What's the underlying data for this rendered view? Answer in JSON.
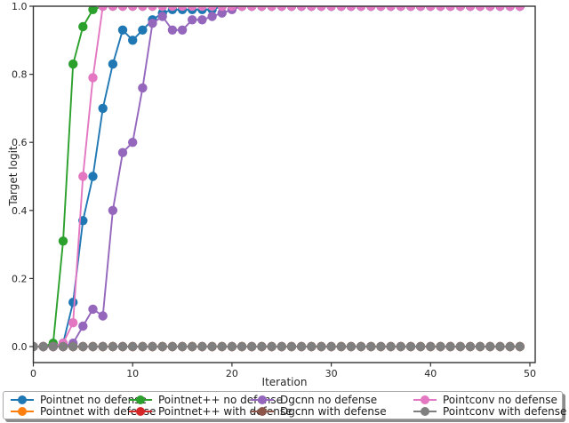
{
  "figure": {
    "background": "#ffffff",
    "text_color": "#262626",
    "spine_color": "#333333"
  },
  "chart_data": {
    "type": "line",
    "title": "",
    "xlabel": "Iteration",
    "ylabel": "Target  logit",
    "xlim": [
      0,
      50.5
    ],
    "ylim": [
      -0.05,
      1.0
    ],
    "xticks": [
      0,
      10,
      20,
      30,
      40,
      50
    ],
    "xtick_labels": [
      "0",
      "10",
      "20",
      "30",
      "40",
      "50"
    ],
    "yticks": [
      0.0,
      0.2,
      0.4,
      0.6,
      0.8,
      1.0
    ],
    "ytick_labels": [
      "0.0",
      "0.2",
      "0.4",
      "0.6",
      "0.8",
      "1.0"
    ],
    "grid": false,
    "legend_position": "bottom",
    "legend_columns": 4,
    "marker": "circle",
    "x": [
      0,
      1,
      2,
      3,
      4,
      5,
      6,
      7,
      8,
      9,
      10,
      11,
      12,
      13,
      14,
      15,
      16,
      17,
      18,
      19,
      20,
      21,
      22,
      23,
      24,
      25,
      26,
      27,
      28,
      29,
      30,
      31,
      32,
      33,
      34,
      35,
      36,
      37,
      38,
      39,
      40,
      41,
      42,
      43,
      44,
      45,
      46,
      47,
      48,
      49
    ],
    "series": [
      {
        "name": "Pointnet no defense",
        "color": "#1f77b4",
        "values": [
          0,
          0,
          0,
          0.01,
          0.13,
          0.37,
          0.5,
          0.7,
          0.83,
          0.93,
          0.9,
          0.93,
          0.96,
          0.98,
          0.99,
          0.99,
          0.99,
          0.99,
          0.99,
          1,
          1,
          1,
          1,
          1,
          1,
          1,
          1,
          1,
          1,
          1,
          1,
          1,
          1,
          1,
          1,
          1,
          1,
          1,
          1,
          1,
          1,
          1,
          1,
          1,
          1,
          1,
          1,
          1,
          1,
          1
        ]
      },
      {
        "name": "Pointnet with defense",
        "color": "#ff7f0e",
        "values": [
          0,
          0,
          0,
          0,
          0,
          0,
          0,
          0,
          0,
          0,
          0,
          0,
          0,
          0,
          0,
          0,
          0,
          0,
          0,
          0,
          0,
          0,
          0,
          0,
          0,
          0,
          0,
          0,
          0,
          0,
          0,
          0,
          0,
          0,
          0,
          0,
          0,
          0,
          0,
          0,
          0,
          0,
          0,
          0,
          0,
          0,
          0,
          0,
          0,
          0
        ]
      },
      {
        "name": "Pointnet++ no defense",
        "color": "#2ca02c",
        "values": [
          0,
          0,
          0.01,
          0.31,
          0.83,
          0.94,
          0.99,
          1,
          1,
          1,
          1,
          1,
          1,
          1,
          1,
          1,
          1,
          1,
          1,
          1,
          1,
          1,
          1,
          1,
          1,
          1,
          1,
          1,
          1,
          1,
          1,
          1,
          1,
          1,
          1,
          1,
          1,
          1,
          1,
          1,
          1,
          1,
          1,
          1,
          1,
          1,
          1,
          1,
          1,
          1
        ]
      },
      {
        "name": "Pointnet++ with defense",
        "color": "#d62728",
        "values": [
          0,
          0,
          0,
          0,
          0,
          0,
          0,
          0,
          0,
          0,
          0,
          0,
          0,
          0,
          0,
          0,
          0,
          0,
          0,
          0,
          0,
          0,
          0,
          0,
          0,
          0,
          0,
          0,
          0,
          0,
          0,
          0,
          0,
          0,
          0,
          0,
          0,
          0,
          0,
          0,
          0,
          0,
          0,
          0,
          0,
          0,
          0,
          0,
          0,
          0
        ]
      },
      {
        "name": "Dgcnn no defense",
        "color": "#9467bd",
        "values": [
          0,
          0,
          0,
          0,
          0.01,
          0.06,
          0.11,
          0.09,
          0.4,
          0.57,
          0.6,
          0.76,
          0.95,
          0.97,
          0.93,
          0.93,
          0.96,
          0.96,
          0.97,
          0.98,
          0.99,
          1,
          1,
          1,
          1,
          1,
          1,
          1,
          1,
          1,
          1,
          1,
          1,
          1,
          1,
          1,
          1,
          1,
          1,
          1,
          1,
          1,
          1,
          1,
          1,
          1,
          1,
          1,
          1,
          1
        ]
      },
      {
        "name": "Dgcnn with defense",
        "color": "#8c564b",
        "values": [
          0,
          0,
          0,
          0,
          0,
          0,
          0,
          0,
          0,
          0,
          0,
          0,
          0,
          0,
          0,
          0,
          0,
          0,
          0,
          0,
          0,
          0,
          0,
          0,
          0,
          0,
          0,
          0,
          0,
          0,
          0,
          0,
          0,
          0,
          0,
          0,
          0,
          0,
          0,
          0,
          0,
          0,
          0,
          0,
          0,
          0,
          0,
          0,
          0,
          0
        ]
      },
      {
        "name": "Pointconv no defense",
        "color": "#e377c2",
        "values": [
          0,
          0,
          0,
          0.01,
          0.07,
          0.5,
          0.79,
          1,
          1,
          1,
          1,
          1,
          1,
          1,
          1,
          1,
          1,
          1,
          1,
          1,
          1,
          1,
          1,
          1,
          1,
          1,
          1,
          1,
          1,
          1,
          1,
          1,
          1,
          1,
          1,
          1,
          1,
          1,
          1,
          1,
          1,
          1,
          1,
          1,
          1,
          1,
          1,
          1,
          1,
          1
        ]
      },
      {
        "name": "Pointconv with defense",
        "color": "#7f7f7f",
        "values": [
          0,
          0,
          0,
          0,
          0,
          0,
          0,
          0,
          0,
          0,
          0,
          0,
          0,
          0,
          0,
          0,
          0,
          0,
          0,
          0,
          0,
          0,
          0,
          0,
          0,
          0,
          0,
          0,
          0,
          0,
          0,
          0,
          0,
          0,
          0,
          0,
          0,
          0,
          0,
          0,
          0,
          0,
          0,
          0,
          0,
          0,
          0,
          0,
          0,
          0
        ]
      }
    ]
  }
}
